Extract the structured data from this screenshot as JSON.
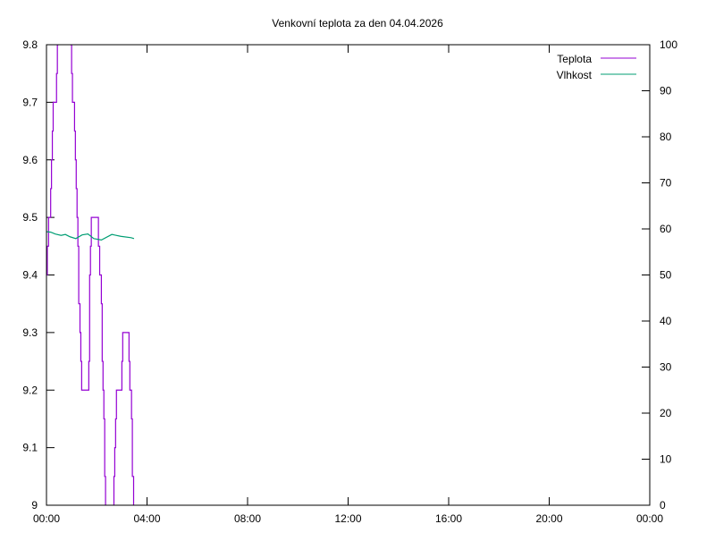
{
  "chart_data": {
    "type": "line",
    "title": "Venkovní teplota za den 04.04.2026",
    "xlabel": "",
    "ylabel": "",
    "y2label": "",
    "x_ticks": [
      "00:00",
      "04:00",
      "08:00",
      "12:00",
      "16:00",
      "20:00",
      "00:00"
    ],
    "x_range_hours": [
      0,
      24
    ],
    "ylim": [
      9,
      9.8
    ],
    "y_ticks": [
      "9",
      "9.1",
      "9.2",
      "9.3",
      "9.4",
      "9.5",
      "9.6",
      "9.7",
      "9.8"
    ],
    "y2lim": [
      0,
      100
    ],
    "y2_ticks": [
      "0",
      "10",
      "20",
      "30",
      "40",
      "50",
      "60",
      "70",
      "80",
      "90",
      "100"
    ],
    "grid": false,
    "legend_placement": "top-right",
    "series": [
      {
        "name": "Teplota",
        "axis": "left",
        "style": "steps",
        "color": "#9400d3",
        "points": [
          [
            "0:00",
            9.4
          ],
          [
            "0:02",
            9.45
          ],
          [
            "0:05",
            9.5
          ],
          [
            "0:10",
            9.55
          ],
          [
            "0:12",
            9.6
          ],
          [
            "0:14",
            9.65
          ],
          [
            "0:16",
            9.7
          ],
          [
            "0:24",
            9.75
          ],
          [
            "0:26",
            9.8
          ],
          [
            "0:28",
            9.85
          ],
          [
            "0:58",
            9.8
          ],
          [
            "1:00",
            9.75
          ],
          [
            "1:02",
            9.7
          ],
          [
            "1:07",
            9.65
          ],
          [
            "1:09",
            9.6
          ],
          [
            "1:11",
            9.55
          ],
          [
            "1:13",
            9.5
          ],
          [
            "1:15",
            9.45
          ],
          [
            "1:17",
            9.35
          ],
          [
            "1:20",
            9.3
          ],
          [
            "1:22",
            9.25
          ],
          [
            "1:24",
            9.2
          ],
          [
            "1:41",
            9.25
          ],
          [
            "1:43",
            9.4
          ],
          [
            "1:45",
            9.45
          ],
          [
            "1:47",
            9.5
          ],
          [
            "2:04",
            9.45
          ],
          [
            "2:07",
            9.4
          ],
          [
            "2:11",
            9.35
          ],
          [
            "2:13",
            9.25
          ],
          [
            "2:15",
            9.2
          ],
          [
            "2:17",
            9.15
          ],
          [
            "2:19",
            9.05
          ],
          [
            "2:21",
            8.95
          ],
          [
            "2:41",
            9.05
          ],
          [
            "2:43",
            9.1
          ],
          [
            "2:45",
            9.15
          ],
          [
            "2:47",
            9.2
          ],
          [
            "3:00",
            9.25
          ],
          [
            "3:02",
            9.3
          ],
          [
            "3:17",
            9.25
          ],
          [
            "3:19",
            9.2
          ],
          [
            "3:23",
            9.15
          ],
          [
            "3:25",
            9.05
          ],
          [
            "3:28",
            8.95
          ]
        ]
      },
      {
        "name": "Vlhkost",
        "axis": "right",
        "style": "lines",
        "color": "#009e73",
        "points": [
          [
            "0:00",
            59.4
          ],
          [
            "0:10",
            59.3
          ],
          [
            "0:21",
            58.9
          ],
          [
            "0:35",
            58.6
          ],
          [
            "0:45",
            58.8
          ],
          [
            "0:56",
            58.3
          ],
          [
            "1:10",
            57.9
          ],
          [
            "1:25",
            58.7
          ],
          [
            "1:39",
            58.9
          ],
          [
            "1:53",
            57.9
          ],
          [
            "2:11",
            57.6
          ],
          [
            "2:36",
            58.8
          ],
          [
            "2:57",
            58.4
          ],
          [
            "3:22",
            58.1
          ],
          [
            "3:29",
            57.9
          ]
        ]
      }
    ]
  }
}
